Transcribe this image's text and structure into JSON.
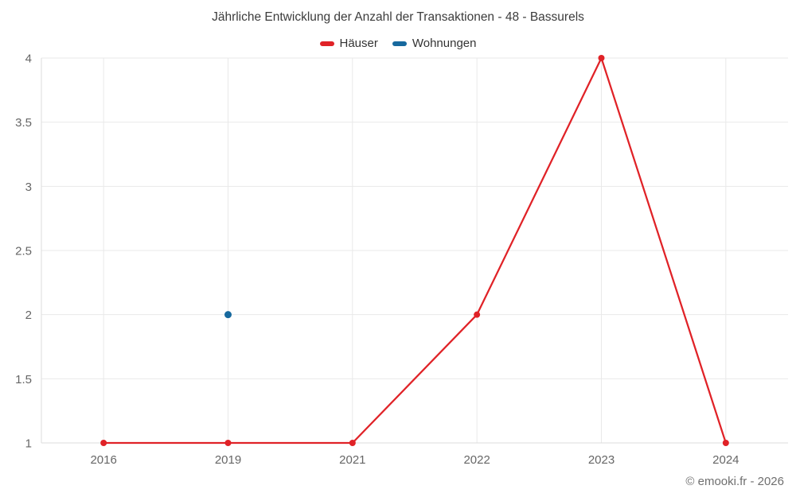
{
  "title": "Jährliche Entwicklung der Anzahl der Transaktionen - 48 - Bassurels",
  "footer": {
    "text": "© emooki.fr - 2026"
  },
  "colors": {
    "hauser": "#e02227",
    "wohnungen": "#17699e",
    "grid": "#e9e9e9",
    "axis": "#dcdcdc",
    "tick_text": "#666666",
    "title_text": "#3c3c3c"
  },
  "chart_data": {
    "type": "line",
    "title": "Jährliche Entwicklung der Anzahl der Transaktionen - 48 - Bassurels",
    "categories": [
      "2016",
      "2019",
      "2021",
      "2022",
      "2023",
      "2024"
    ],
    "series": [
      {
        "name": "Häuser",
        "color": "#e02227",
        "values": [
          1,
          1,
          1,
          2,
          4,
          1
        ],
        "marker_radius": 4
      },
      {
        "name": "Wohnungen",
        "color": "#17699e",
        "values": [
          null,
          2,
          null,
          null,
          null,
          null
        ],
        "marker_radius": 4.5
      }
    ],
    "xlabel": "",
    "ylabel": "",
    "ylim": [
      1,
      4
    ],
    "ytick_step": 0.5,
    "grid": true,
    "legend_position": "top"
  }
}
